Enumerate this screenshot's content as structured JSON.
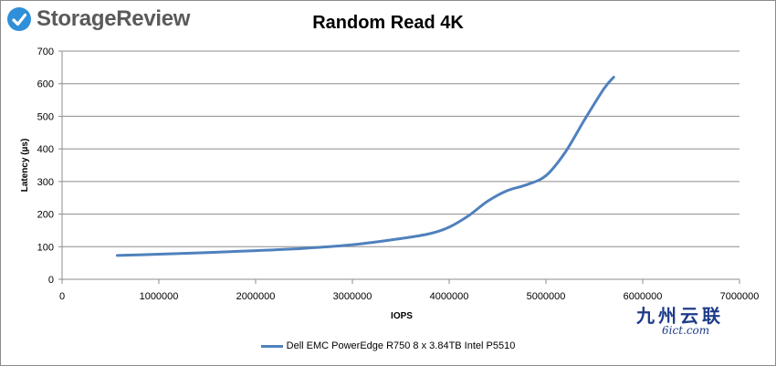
{
  "brand": {
    "name": "StorageReview",
    "icon": "storagereview-logo-icon",
    "accent": "#2f8fd8"
  },
  "watermark": {
    "cn": "九州云联",
    "en": "6ict.com"
  },
  "chart_data": {
    "type": "line",
    "title": "Random Read 4K",
    "xlabel": "IOPS",
    "ylabel": "Latency (µs)",
    "xlim": [
      0,
      7000000
    ],
    "ylim": [
      0,
      700
    ],
    "xticks": [
      "0",
      "1000000",
      "2000000",
      "3000000",
      "4000000",
      "5000000",
      "6000000",
      "7000000"
    ],
    "yticks": [
      "0",
      "100",
      "200",
      "300",
      "400",
      "500",
      "600",
      "700"
    ],
    "grid": true,
    "legend_position": "bottom",
    "series": [
      {
        "name": "Dell EMC PowerEdge R750 8 x 3.84TB Intel P5510",
        "color": "#4f81bd",
        "x": [
          570000,
          1000000,
          1500000,
          2000000,
          2500000,
          3000000,
          3500000,
          3800000,
          4000000,
          4200000,
          4400000,
          4600000,
          4800000,
          5000000,
          5200000,
          5400000,
          5600000,
          5700000
        ],
        "y": [
          73,
          77,
          82,
          88,
          95,
          106,
          125,
          140,
          160,
          195,
          240,
          272,
          290,
          318,
          390,
          490,
          585,
          620
        ]
      }
    ]
  }
}
